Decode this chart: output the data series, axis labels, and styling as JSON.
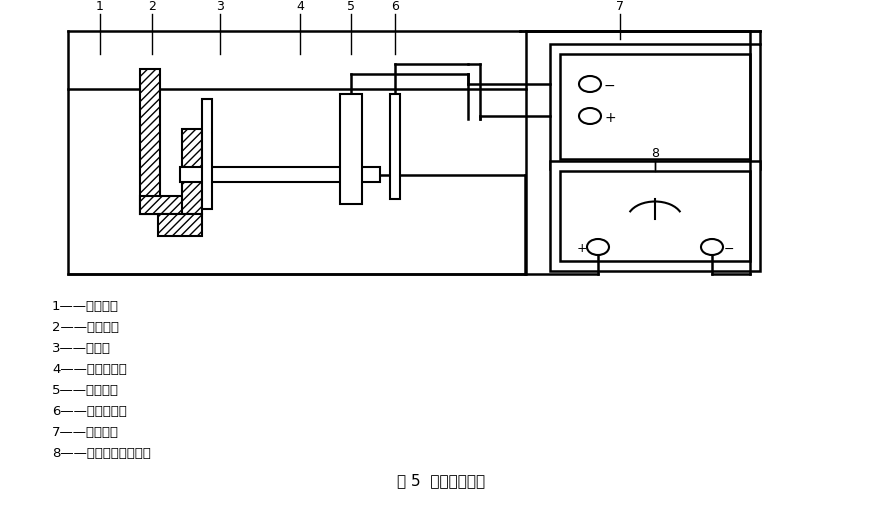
{
  "title": "图 5  电解脱锡装置",
  "legend_items": [
    "1——脱锡槽；",
    "2——试样夹；",
    "3——试样；",
    "4——脱锡溶液；",
    "5——碳电极；",
    "6——参考电极；",
    "7——记录仪；",
    "8——恒电流直流电源。"
  ],
  "lc": "#000000",
  "lw_main": 1.8,
  "lw_thin": 1.0
}
